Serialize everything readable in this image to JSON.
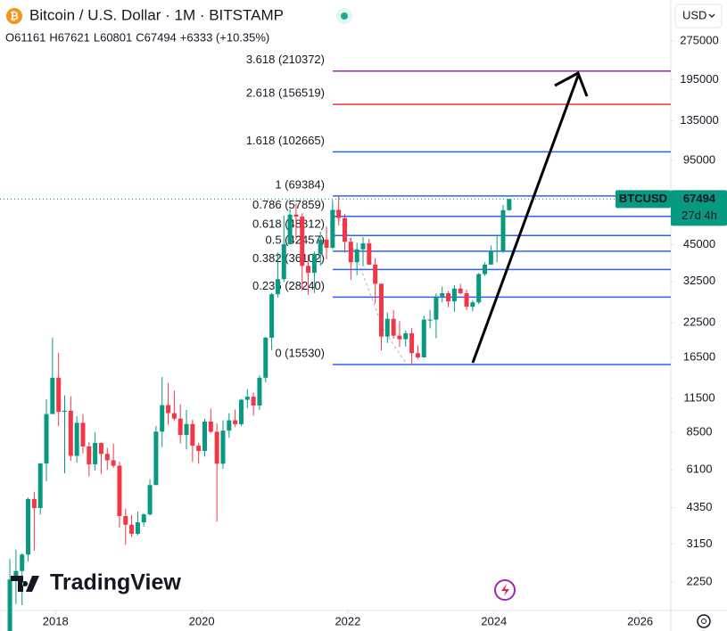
{
  "header": {
    "title": "Bitcoin / U.S. Dollar · 1M · BITSTAMP",
    "ohlc": [
      [
        "O",
        "61161"
      ],
      [
        "H",
        "67621"
      ],
      [
        "L",
        "60801"
      ],
      [
        "C",
        "67494"
      ],
      [
        "+6333 (+10.35%)"
      ]
    ],
    "currency": "USD",
    "logo": "TradingView"
  },
  "chart_data": {
    "type": "candlestick",
    "log_scale": true,
    "grid": false,
    "up_color": "#089981",
    "down_color": "#f23645",
    "x": [
      "2017-05",
      "2017-06",
      "2017-07",
      "2017-08",
      "2017-09",
      "2017-10",
      "2017-11",
      "2017-12",
      "2018-01",
      "2018-02",
      "2018-03",
      "2018-04",
      "2018-05",
      "2018-06",
      "2018-07",
      "2018-08",
      "2018-09",
      "2018-10",
      "2018-11",
      "2018-12",
      "2019-01",
      "2019-02",
      "2019-03",
      "2019-04",
      "2019-05",
      "2019-06",
      "2019-07",
      "2019-08",
      "2019-09",
      "2019-10",
      "2019-11",
      "2019-12",
      "2020-01",
      "2020-02",
      "2020-03",
      "2020-04",
      "2020-05",
      "2020-06",
      "2020-07",
      "2020-08",
      "2020-09",
      "2020-10",
      "2020-11",
      "2020-12",
      "2021-01",
      "2021-02",
      "2021-03",
      "2021-04",
      "2021-05",
      "2021-06",
      "2021-07",
      "2021-08",
      "2021-09",
      "2021-10",
      "2021-11",
      "2021-12",
      "2022-01",
      "2022-02",
      "2022-03",
      "2022-04",
      "2022-05",
      "2022-06",
      "2022-07",
      "2022-08",
      "2022-09",
      "2022-10",
      "2022-11",
      "2022-12",
      "2023-01",
      "2023-02",
      "2023-03",
      "2023-04",
      "2023-05",
      "2023-06",
      "2023-07",
      "2023-08",
      "2023-09",
      "2023-10",
      "2023-11",
      "2023-12",
      "2024-01",
      "2024-02",
      "2024-03"
    ],
    "open": [
      1350,
      2300,
      2480,
      2870,
      4700,
      4340,
      6450,
      10000,
      13800,
      10200,
      10300,
      6900,
      9250,
      7500,
      6400,
      7730,
      7020,
      6630,
      6320,
      4040,
      3740,
      3450,
      3820,
      4100,
      5320,
      8550,
      10820,
      10080,
      9600,
      8300,
      9150,
      7550,
      7200,
      9350,
      8540,
      6430,
      8630,
      9460,
      9140,
      11350,
      11660,
      10780,
      13800,
      19700,
      28980,
      33120,
      45200,
      58800,
      57750,
      37300,
      35050,
      41500,
      47100,
      43800,
      61300,
      57000,
      46200,
      38500,
      43200,
      45500,
      37700,
      31800,
      19900,
      23300,
      20050,
      19430,
      20500,
      17170,
      16540,
      23130,
      23130,
      28450,
      29250,
      27200,
      30480,
      29230,
      25940,
      26970,
      34660,
      37720,
      42280,
      42580,
      61161
    ],
    "high": [
      2760,
      3000,
      2900,
      4760,
      5000,
      6450,
      11400,
      19700,
      17200,
      11800,
      11700,
      9800,
      10000,
      7780,
      8500,
      7770,
      7400,
      7680,
      6550,
      4310,
      4080,
      4200,
      4150,
      5600,
      9000,
      13880,
      13200,
      12300,
      10900,
      10370,
      9500,
      7750,
      9580,
      10500,
      9200,
      9470,
      10080,
      10400,
      11450,
      12480,
      12100,
      14100,
      19900,
      29300,
      41950,
      58350,
      61800,
      64900,
      59500,
      41300,
      42300,
      50500,
      52900,
      67000,
      69000,
      59100,
      47900,
      45800,
      48200,
      47400,
      40000,
      31900,
      24650,
      25200,
      22800,
      21000,
      21450,
      18400,
      23950,
      25250,
      29200,
      31000,
      29800,
      31400,
      31800,
      30200,
      27500,
      35000,
      38450,
      44700,
      48970,
      64000,
      67621
    ],
    "low": [
      1350,
      1850,
      1830,
      2700,
      2970,
      4100,
      5500,
      10700,
      9000,
      5900,
      6600,
      6500,
      7050,
      5750,
      6050,
      5880,
      6100,
      6200,
      3650,
      3130,
      3350,
      3400,
      3680,
      4050,
      5330,
      7450,
      9100,
      9400,
      7700,
      7300,
      6530,
      6430,
      6850,
      8450,
      3850,
      6150,
      8100,
      8900,
      8980,
      10550,
      9850,
      10370,
      13250,
      17600,
      28130,
      32300,
      45000,
      47000,
      30000,
      28800,
      29300,
      37350,
      39600,
      43300,
      53300,
      42000,
      32950,
      34300,
      37200,
      37700,
      26700,
      17600,
      18800,
      19550,
      18150,
      18200,
      15500,
      16300,
      16500,
      21400,
      19600,
      26950,
      25800,
      24800,
      28900,
      25200,
      24900,
      26550,
      34100,
      37650,
      38500,
      41900,
      60801
    ],
    "close": [
      2300,
      2480,
      2870,
      4700,
      4340,
      6450,
      10000,
      13800,
      10200,
      10300,
      6900,
      9250,
      7500,
      6400,
      7730,
      7020,
      6630,
      6320,
      4040,
      3740,
      3450,
      3820,
      4100,
      5320,
      8550,
      10820,
      10080,
      9600,
      8300,
      9150,
      7550,
      7200,
      9350,
      8540,
      6430,
      8630,
      9460,
      9140,
      11350,
      11660,
      10780,
      13800,
      19700,
      28980,
      33120,
      45200,
      58800,
      57750,
      37300,
      35050,
      41500,
      47100,
      43800,
      61300,
      57000,
      46200,
      38500,
      43200,
      45500,
      37700,
      31800,
      19900,
      23300,
      20050,
      19430,
      20500,
      17170,
      16540,
      23130,
      23130,
      28450,
      29250,
      27200,
      30480,
      29230,
      25940,
      26970,
      34660,
      37720,
      42280,
      42580,
      61160,
      67494
    ],
    "xlim": [
      2017.24,
      2026.42
    ],
    "xticks": [
      2018,
      2020,
      2022,
      2024,
      2026
    ],
    "ylim": [
      1746,
      395500
    ],
    "yticks": [
      275000,
      195000,
      135000,
      95000,
      45000,
      32500,
      22500,
      16500,
      11500,
      8500,
      6100,
      4350,
      3150,
      2250
    ],
    "fib_levels": [
      {
        "label": "3.618 (210372)",
        "value": 210372,
        "color": "#9c27b0"
      },
      {
        "label": "2.618 (156519)",
        "value": 156519,
        "color": "#e53935"
      },
      {
        "label": "1.618 (102665)",
        "value": 102665,
        "color": "#2962ff"
      },
      {
        "label": "1 (69384)",
        "value": 69384,
        "color": "#2962ff"
      },
      {
        "label": "0.786 (57859)",
        "value": 57859,
        "color": "#2962ff"
      },
      {
        "label": "0.618 (48812)",
        "value": 48812,
        "color": "#2962ff"
      },
      {
        "label": "0.5 (42457)",
        "value": 42457,
        "color": "#2962ff"
      },
      {
        "label": "0.382 (36102)",
        "value": 36102,
        "color": "#2962ff"
      },
      {
        "label": "0.236 (28240)",
        "value": 28240,
        "color": "#2962ff"
      },
      {
        "label": "0 (15530)",
        "value": 15530,
        "color": "#2962ff"
      }
    ],
    "last_price": {
      "symbol": "BTCUSD",
      "value": 67494,
      "countdown": "27d 4h",
      "color": "#089981"
    }
  }
}
